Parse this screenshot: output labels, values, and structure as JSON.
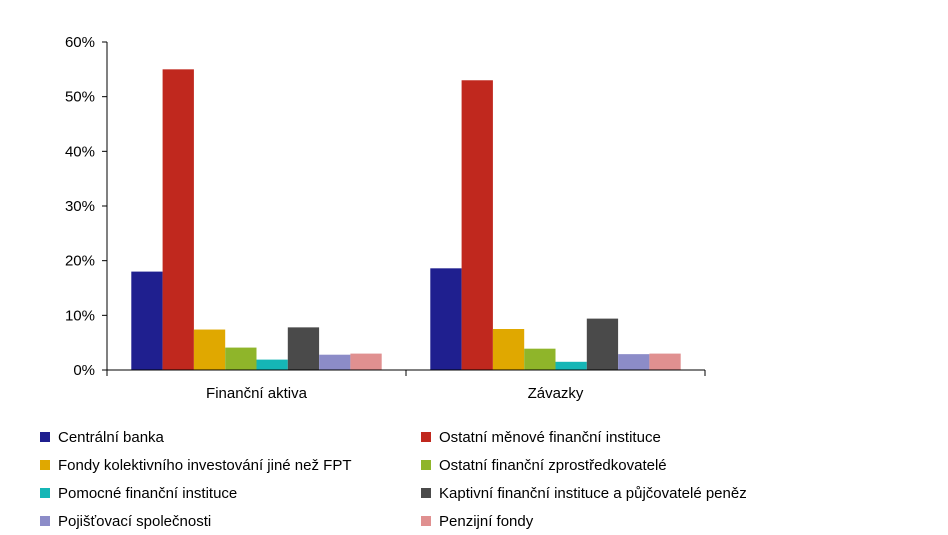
{
  "chart_data": {
    "type": "bar",
    "categories": [
      "Finanční aktiva",
      "Závazky"
    ],
    "ylim": [
      0,
      60
    ],
    "yticks": [
      "0%",
      "10%",
      "20%",
      "30%",
      "40%",
      "50%",
      "60%"
    ],
    "series": [
      {
        "name": "Centrální banka",
        "color": "#1f1f8f",
        "values": [
          18.0,
          18.6
        ]
      },
      {
        "name": "Ostatní měnové finanční instituce",
        "color": "#c0281e",
        "values": [
          55.0,
          53.0
        ]
      },
      {
        "name": "Fondy kolektivního investování jiné než FPT",
        "color": "#e0a800",
        "values": [
          7.4,
          7.5
        ]
      },
      {
        "name": "Ostatní finanční zprostředkovatelé",
        "color": "#8fb52a",
        "values": [
          4.1,
          3.9
        ]
      },
      {
        "name": "Pomocné finanční instituce",
        "color": "#15b6b6",
        "values": [
          1.9,
          1.5
        ]
      },
      {
        "name": "Kaptivní finanční instituce a půjčovatelé peněz",
        "color": "#4a4a4a",
        "values": [
          7.8,
          9.4
        ]
      },
      {
        "name": "Pojišťovací společnosti",
        "color": "#8c8cc8",
        "values": [
          2.8,
          2.9
        ]
      },
      {
        "name": "Penzijní fondy",
        "color": "#e09090",
        "values": [
          3.0,
          3.0
        ]
      }
    ]
  }
}
